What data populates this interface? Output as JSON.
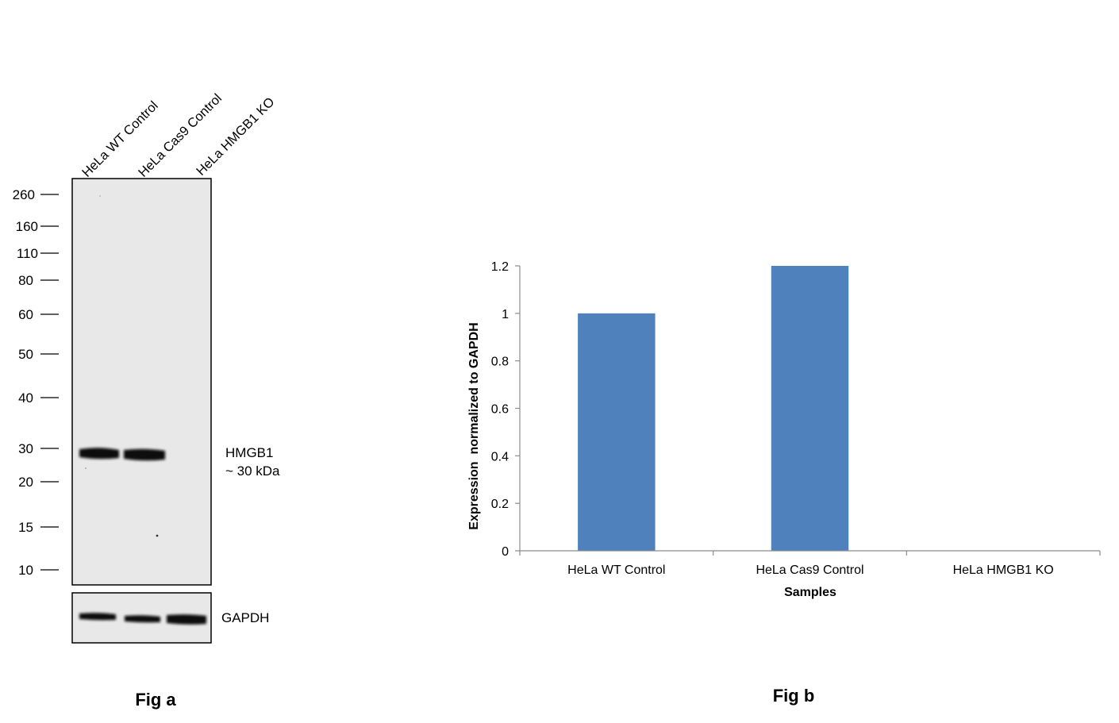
{
  "figure_a": {
    "caption": "Fig a",
    "lanes": [
      "HeLa WT Control",
      "HeLa Cas9 Control",
      "HeLa HMGB1 KO"
    ],
    "mw_markers": [
      "260",
      "160",
      "110",
      "80",
      "60",
      "50",
      "40",
      "30",
      "20",
      "15",
      "10"
    ],
    "band_label_line1": "HMGB1",
    "band_label_line2": "~ 30 kDa",
    "loading_control_label": "GAPDH"
  },
  "figure_b": {
    "caption": "Fig b"
  },
  "chart_data": {
    "type": "bar",
    "categories": [
      "HeLa WT Control",
      "HeLa Cas9 Control",
      "HeLa HMGB1 KO"
    ],
    "values": [
      1.0,
      1.2,
      0.0
    ],
    "title": "",
    "xlabel": "Samples",
    "ylabel": "Expression  normalized to GAPDH",
    "ylim": [
      0,
      1.2
    ],
    "yticks": [
      "0",
      "0.2",
      "0.4",
      "0.6",
      "0.8",
      "1",
      "1.2"
    ],
    "grid": false,
    "legend": "none",
    "bar_color": "#4f81bd"
  }
}
